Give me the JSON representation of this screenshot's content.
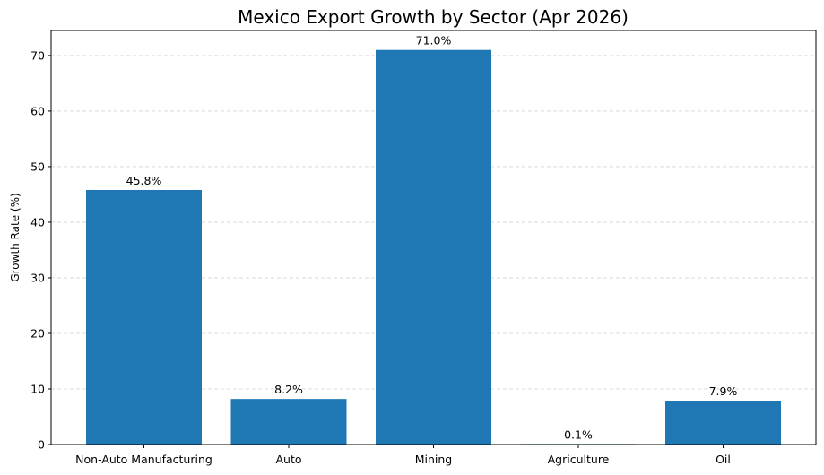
{
  "chart_data": {
    "type": "bar",
    "title": "Mexico Export Growth by Sector (Apr 2026)",
    "xlabel": "",
    "ylabel": "Growth Rate (%)",
    "categories": [
      "Non-Auto Manufacturing",
      "Auto",
      "Mining",
      "Agriculture",
      "Oil"
    ],
    "values": [
      45.8,
      8.2,
      71.0,
      0.1,
      7.9
    ],
    "value_labels": [
      "45.8%",
      "8.2%",
      "71.0%",
      "0.1%",
      "7.9%"
    ],
    "ylim": [
      0,
      74.5
    ],
    "yticks": [
      0,
      10,
      20,
      30,
      40,
      50,
      60,
      70
    ],
    "ytick_labels": [
      "0",
      "10",
      "20",
      "30",
      "40",
      "50",
      "60",
      "70"
    ],
    "grid": "y-dashed",
    "bar_color": "#1f77b4",
    "legend": "none"
  }
}
